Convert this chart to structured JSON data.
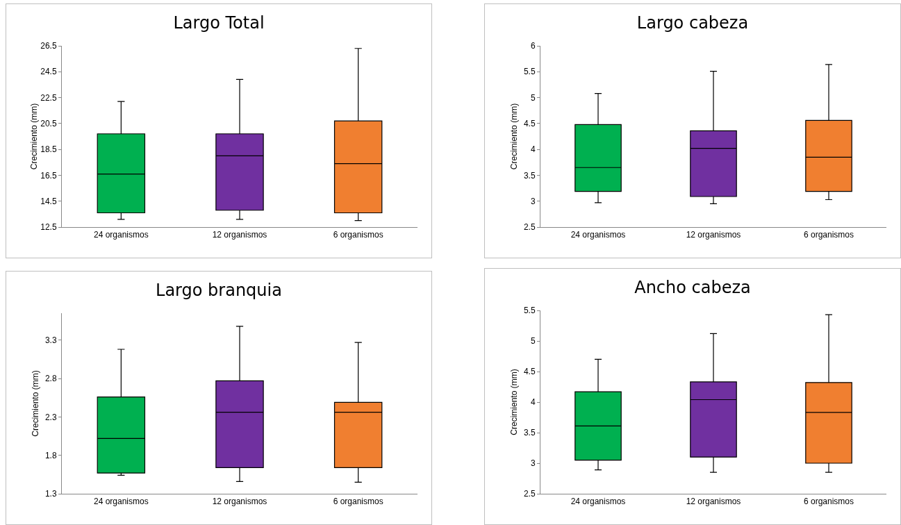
{
  "chart_data": [
    {
      "type": "box",
      "title": "Largo Total",
      "ylabel": "Crecimiento (mm)",
      "categories": [
        "24 organismos",
        "12 organismos",
        "6 organismos"
      ],
      "colors": [
        "#00b050",
        "#7030a0",
        "#f07f30"
      ],
      "ylim": [
        12.5,
        26.5
      ],
      "yticks": [
        12.5,
        14.5,
        16.5,
        18.5,
        20.5,
        22.5,
        24.5,
        26.5
      ],
      "boxes": [
        {
          "low": 13.1,
          "q1": 13.6,
          "median": 16.6,
          "q3": 19.7,
          "high": 22.2
        },
        {
          "low": 13.1,
          "q1": 13.8,
          "median": 18.0,
          "q3": 19.7,
          "high": 23.9
        },
        {
          "low": 13.0,
          "q1": 13.6,
          "median": 17.4,
          "q3": 20.7,
          "high": 26.3
        }
      ]
    },
    {
      "type": "box",
      "title": "Largo cabeza",
      "ylabel": "Crecimiento (mm)",
      "categories": [
        "24 organismos",
        "12 organismos",
        "6 organismos"
      ],
      "colors": [
        "#00b050",
        "#7030a0",
        "#f07f30"
      ],
      "ylim": [
        2.5,
        6
      ],
      "yticks": [
        2.5,
        3,
        3.5,
        4,
        4.5,
        5,
        5.5,
        6
      ],
      "boxes": [
        {
          "low": 2.97,
          "q1": 3.19,
          "median": 3.65,
          "q3": 4.48,
          "high": 5.08
        },
        {
          "low": 2.95,
          "q1": 3.09,
          "median": 4.02,
          "q3": 4.36,
          "high": 5.51
        },
        {
          "low": 3.03,
          "q1": 3.19,
          "median": 3.85,
          "q3": 4.56,
          "high": 5.64
        }
      ]
    },
    {
      "type": "box",
      "title": "Largo branquia",
      "ylabel": "Crecimiento (mm)",
      "categories": [
        "24 organismos",
        "12 organismos",
        "6 organismos"
      ],
      "colors": [
        "#00b050",
        "#7030a0",
        "#f07f30"
      ],
      "ylim": [
        1.3,
        3.65
      ],
      "yticks": [
        1.3,
        1.8,
        2.3,
        2.8,
        3.3
      ],
      "boxes": [
        {
          "low": 1.54,
          "q1": 1.57,
          "median": 2.02,
          "q3": 2.56,
          "high": 3.18
        },
        {
          "low": 1.46,
          "q1": 1.64,
          "median": 2.36,
          "q3": 2.77,
          "high": 3.48
        },
        {
          "low": 1.45,
          "q1": 1.64,
          "median": 2.36,
          "q3": 2.49,
          "high": 3.27
        }
      ]
    },
    {
      "type": "box",
      "title": "Ancho cabeza",
      "ylabel": "Crecimiento (mm)",
      "categories": [
        "24 organismos",
        "12 organismos",
        "6 organismos"
      ],
      "colors": [
        "#00b050",
        "#7030a0",
        "#f07f30"
      ],
      "ylim": [
        2.5,
        5.5
      ],
      "yticks": [
        2.5,
        3,
        3.5,
        4,
        4.5,
        5,
        5.5
      ],
      "boxes": [
        {
          "low": 2.89,
          "q1": 3.05,
          "median": 3.61,
          "q3": 4.17,
          "high": 4.7
        },
        {
          "low": 2.85,
          "q1": 3.1,
          "median": 4.04,
          "q3": 4.33,
          "high": 5.12
        },
        {
          "low": 2.85,
          "q1": 3.0,
          "median": 3.83,
          "q3": 4.32,
          "high": 5.43
        }
      ]
    }
  ]
}
